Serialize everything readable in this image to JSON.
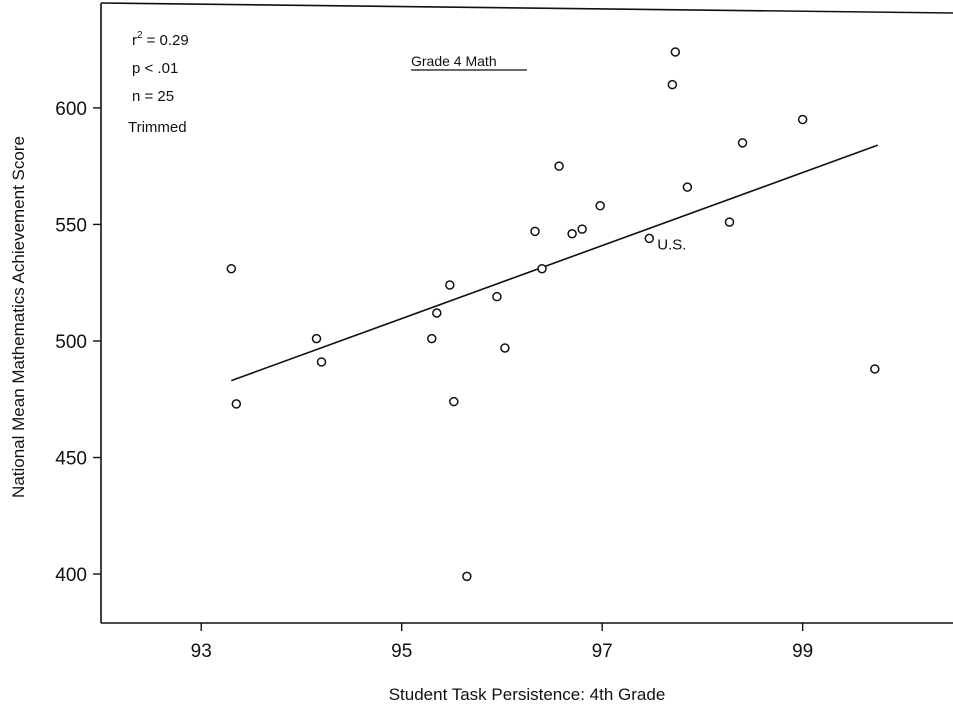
{
  "chart_data": {
    "type": "scatter",
    "title": "Grade 4 Math",
    "xlabel": "Student Task Persistence: 4th Grade",
    "ylabel": "National Mean Mathematics Achievement Score",
    "xlim": [
      92,
      100.5
    ],
    "ylim": [
      379,
      645
    ],
    "xticks": [
      93,
      95,
      97,
      99
    ],
    "yticks": [
      400,
      450,
      500,
      550,
      600
    ],
    "grid": false,
    "stats": [
      "r² = 0.29",
      "p < .01",
      "n = 25",
      "Trimmed"
    ],
    "stats_parts": {
      "r_label": "r",
      "r_sup": "2",
      "r_value": "= 0.29",
      "p": "p < .01",
      "n": "n = 25",
      "note": "Trimmed"
    },
    "points": [
      {
        "x": 93.3,
        "y": 531
      },
      {
        "x": 93.35,
        "y": 473
      },
      {
        "x": 94.15,
        "y": 501
      },
      {
        "x": 94.2,
        "y": 491
      },
      {
        "x": 95.3,
        "y": 501
      },
      {
        "x": 95.35,
        "y": 512
      },
      {
        "x": 95.48,
        "y": 524
      },
      {
        "x": 95.52,
        "y": 474
      },
      {
        "x": 95.65,
        "y": 399
      },
      {
        "x": 95.95,
        "y": 519
      },
      {
        "x": 96.03,
        "y": 497
      },
      {
        "x": 96.33,
        "y": 547
      },
      {
        "x": 96.4,
        "y": 531
      },
      {
        "x": 96.57,
        "y": 575
      },
      {
        "x": 96.7,
        "y": 546
      },
      {
        "x": 96.8,
        "y": 548
      },
      {
        "x": 96.98,
        "y": 558
      },
      {
        "x": 97.47,
        "y": 544
      },
      {
        "x": 97.7,
        "y": 610
      },
      {
        "x": 97.73,
        "y": 624
      },
      {
        "x": 97.85,
        "y": 566
      },
      {
        "x": 98.27,
        "y": 551
      },
      {
        "x": 98.4,
        "y": 585
      },
      {
        "x": 99.0,
        "y": 595
      },
      {
        "x": 99.72,
        "y": 488
      }
    ],
    "annotations": [
      {
        "text": "U.S.",
        "x": 97.47,
        "y": 544
      }
    ],
    "fit_line": {
      "x": [
        93.3,
        99.75
      ],
      "y": [
        483,
        584
      ]
    }
  }
}
